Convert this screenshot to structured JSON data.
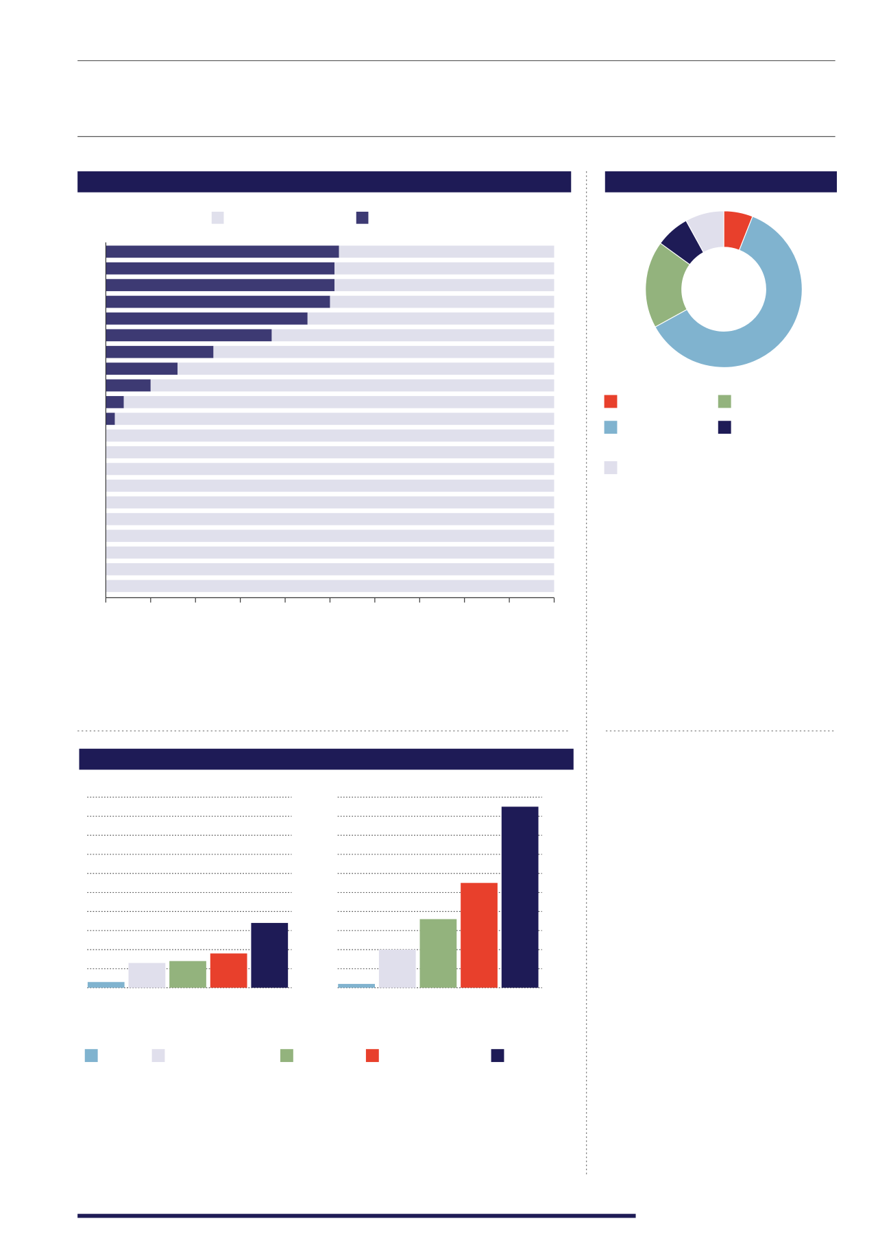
{
  "chart_data": [
    {
      "type": "hbar",
      "stacked": true,
      "xlim": [
        0,
        100
      ],
      "xticks": [
        0,
        10,
        20,
        30,
        40,
        50,
        60,
        70,
        80,
        90,
        100
      ],
      "legend": "top",
      "series": [
        {
          "color": "#3d3a73",
          "values": [
            52,
            51,
            51,
            50,
            45,
            37,
            24,
            16,
            10,
            4,
            2,
            0,
            0,
            0,
            0,
            0,
            0,
            0,
            0,
            0,
            0
          ]
        },
        {
          "color": "#e0e0ec",
          "values": [
            48,
            49,
            49,
            50,
            55,
            63,
            76,
            84,
            90,
            96,
            98,
            100,
            100,
            100,
            100,
            100,
            100,
            100,
            100,
            100,
            100
          ]
        }
      ]
    },
    {
      "type": "pie",
      "values": [
        6,
        61,
        18,
        7,
        8
      ],
      "colors": [
        "#e8402c",
        "#80b3cf",
        "#93b37d",
        "#1e1b56",
        "#e0dfec"
      ]
    },
    {
      "type": "bar",
      "ylim": [
        0,
        10
      ],
      "yticks": [
        0,
        1,
        2,
        3,
        4,
        5,
        6,
        7,
        8,
        9,
        10
      ],
      "values": [
        0.3,
        1.3,
        1.4,
        1.8,
        3.4
      ],
      "colors": [
        "#80b3cf",
        "#e0dfec",
        "#93b37d",
        "#e8402c",
        "#1e1b56"
      ]
    },
    {
      "type": "bar",
      "ylim": [
        0,
        10
      ],
      "yticks": [
        0,
        1,
        2,
        3,
        4,
        5,
        6,
        7,
        8,
        9,
        10
      ],
      "values": [
        0.2,
        2,
        3.6,
        5.5,
        9.5
      ],
      "colors": [
        "#80b3cf",
        "#e0dfec",
        "#93b37d",
        "#e8402c",
        "#1e1b56"
      ]
    }
  ]
}
